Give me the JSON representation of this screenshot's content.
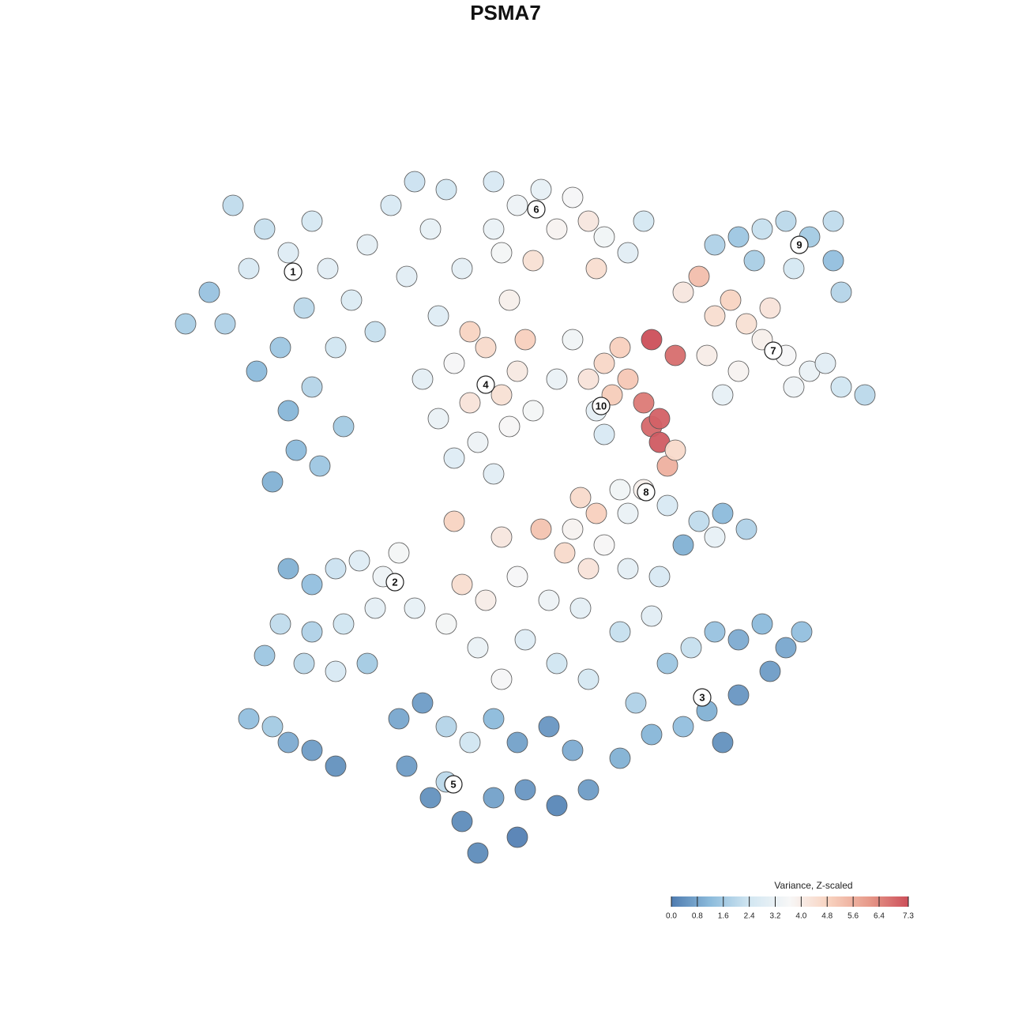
{
  "chart_data": {
    "type": "scatter",
    "title": "PSMA7",
    "x": [
      -40,
      -38,
      -35,
      -33,
      -30,
      -27,
      -25,
      -28,
      -31,
      -34,
      -30,
      -27,
      -24,
      -22,
      -20,
      -17,
      -14,
      -12,
      -15,
      -19,
      -23,
      -29,
      -32,
      -26,
      -43,
      -37,
      -10,
      -8,
      -11,
      -4,
      -1,
      2,
      4,
      6,
      8,
      10,
      13,
      15,
      -3,
      1,
      -2,
      -4,
      9,
      -13,
      -11,
      -9,
      -7,
      -5,
      -3,
      -1,
      -2,
      -6,
      -9,
      -4,
      1,
      -7,
      0,
      8,
      10,
      12,
      13,
      11,
      9,
      10,
      15,
      16,
      17,
      18,
      17,
      19,
      16,
      19,
      6,
      4,
      20,
      22,
      24,
      26,
      28,
      30,
      33,
      36,
      38,
      40,
      43,
      34,
      27,
      23,
      31,
      25,
      24,
      27,
      30,
      33,
      36,
      39,
      40,
      34,
      29,
      39,
      12,
      15,
      18,
      22,
      25,
      28,
      24,
      20,
      7,
      9,
      6,
      13,
      -9,
      -3,
      2,
      5,
      8,
      10,
      13,
      17,
      -8,
      -5,
      -1,
      3,
      7,
      -10,
      -6,
      0,
      4,
      -3,
      8,
      12,
      16,
      -30,
      -27,
      -24,
      -21,
      -18,
      -19,
      -23,
      -27,
      -31,
      -33,
      -28,
      -24,
      -20,
      -14,
      -16,
      18,
      21,
      24,
      27,
      30,
      33,
      35,
      31,
      27,
      23,
      20,
      16,
      14,
      25,
      12,
      -16,
      -13,
      -10,
      -7,
      -4,
      -1,
      3,
      6,
      -15,
      -12,
      -8,
      -4,
      0,
      4,
      8,
      -1,
      -6,
      -10,
      -35,
      -32,
      -30,
      -27,
      -24
    ],
    "y": [
      27,
      23,
      30,
      35,
      32,
      36,
      30,
      25,
      20,
      17,
      12,
      15,
      20,
      26,
      33,
      38,
      41,
      35,
      29,
      22,
      10,
      7,
      3,
      5,
      23,
      38,
      40,
      30,
      24,
      41,
      38,
      40,
      35,
      39,
      36,
      34,
      32,
      36,
      32,
      31,
      26,
      35,
      30,
      16,
      11,
      18,
      13,
      20,
      14,
      17,
      10,
      8,
      6,
      4,
      12,
      22,
      21,
      16,
      18,
      20,
      16,
      14,
      12,
      9,
      13,
      10,
      8,
      5,
      11,
      7,
      21,
      19,
      21,
      16,
      27,
      29,
      24,
      26,
      23,
      21,
      19,
      17,
      18,
      15,
      14,
      15,
      17,
      19,
      25,
      14,
      33,
      34,
      35,
      36,
      34,
      31,
      27,
      30,
      31,
      36,
      2,
      2,
      0,
      -2,
      -1,
      -3,
      -4,
      -5,
      1,
      -1,
      -3,
      -1,
      -2,
      -4,
      -3,
      -6,
      -8,
      -5,
      -8,
      -9,
      -10,
      -12,
      -9,
      -12,
      -13,
      -15,
      -18,
      -17,
      -20,
      -22,
      -22,
      -16,
      -14,
      -8,
      -10,
      -8,
      -7,
      -9,
      -13,
      -15,
      -16,
      -15,
      -19,
      -20,
      -21,
      -20,
      -13,
      -6,
      -20,
      -18,
      -16,
      -17,
      -15,
      -18,
      -16,
      -21,
      -24,
      -26,
      -28,
      -29,
      -25,
      -30,
      -32,
      -27,
      -25,
      -28,
      -30,
      -27,
      -30,
      -28,
      -31,
      -33,
      -37,
      -40,
      -37,
      -36,
      -38,
      -36,
      -42,
      -44,
      -35,
      -27,
      -28,
      -30,
      -31,
      -33
    ],
    "values": [
      1.4,
      1.8,
      2.6,
      2.2,
      2.8,
      2.5,
      2.9,
      2.0,
      1.5,
      1.2,
      1.1,
      1.9,
      2.4,
      2.7,
      3.0,
      2.6,
      2.3,
      3.1,
      2.9,
      2.2,
      1.6,
      1.2,
      1.0,
      1.5,
      1.7,
      2.1,
      2.4,
      3.0,
      2.8,
      2.6,
      3.3,
      3.1,
      3.8,
      3.6,
      4.2,
      3.4,
      2.9,
      2.5,
      3.5,
      4.4,
      3.9,
      3.2,
      4.5,
      3.0,
      3.2,
      3.6,
      4.3,
      4.6,
      4.4,
      4.1,
      3.7,
      3.3,
      2.8,
      2.9,
      3.5,
      4.8,
      4.9,
      4.3,
      4.7,
      4.9,
      5.1,
      5.0,
      3.0,
      2.6,
      6.6,
      6.9,
      7.1,
      5.6,
      7.0,
      4.6,
      7.3,
      6.8,
      3.4,
      3.2,
      4.2,
      5.3,
      4.5,
      4.8,
      4.4,
      3.9,
      3.6,
      3.2,
      2.9,
      2.4,
      2.0,
      3.3,
      3.8,
      4.0,
      4.3,
      3.1,
      1.8,
      1.5,
      2.2,
      2.0,
      1.6,
      1.3,
      1.9,
      2.5,
      1.7,
      2.1,
      3.4,
      3.9,
      2.6,
      2.1,
      1.2,
      1.8,
      3.1,
      1.0,
      4.6,
      4.9,
      3.8,
      3.2,
      4.8,
      4.2,
      5.2,
      4.6,
      4.3,
      3.7,
      3.0,
      2.6,
      4.5,
      4.0,
      3.6,
      3.3,
      3.0,
      3.5,
      3.2,
      2.8,
      2.4,
      3.6,
      2.5,
      2.2,
      2.9,
      1.0,
      1.3,
      2.3,
      2.8,
      3.3,
      3.0,
      2.4,
      1.8,
      2.1,
      1.5,
      2.0,
      2.6,
      1.6,
      3.1,
      3.5,
      1.5,
      2.2,
      1.4,
      0.9,
      1.2,
      0.8,
      1.3,
      0.6,
      0.5,
      1.0,
      1.3,
      1.1,
      1.8,
      0.4,
      1.0,
      0.8,
      0.6,
      1.9,
      2.4,
      1.2,
      0.7,
      0.5,
      0.9,
      0.6,
      0.4,
      0.3,
      0.7,
      0.5,
      0.2,
      0.6,
      0.1,
      0.3,
      2.0,
      1.3,
      1.6,
      0.9,
      0.6,
      0.4
    ],
    "xlim": [
      -47,
      47
    ],
    "ylim": [
      -46,
      46
    ],
    "clusters": [
      {
        "label": "1",
        "x": -29.4,
        "y": 29.6
      },
      {
        "label": "2",
        "x": -16.5,
        "y": -9.7
      },
      {
        "label": "3",
        "x": 22.4,
        "y": -24.3
      },
      {
        "label": "4",
        "x": -5,
        "y": 15.3
      },
      {
        "label": "5",
        "x": -9.1,
        "y": -35.3
      },
      {
        "label": "6",
        "x": 1.4,
        "y": 37.5
      },
      {
        "label": "7",
        "x": 31.4,
        "y": 19.6
      },
      {
        "label": "8",
        "x": 15.3,
        "y": 1.7
      },
      {
        "label": "9",
        "x": 34.7,
        "y": 33
      },
      {
        "label": "10",
        "x": 9.6,
        "y": 12.6
      }
    ],
    "colorbar": {
      "title": "Variance, Z-scaled",
      "range": [
        0,
        7.3
      ],
      "ticks": [
        {
          "value": 0,
          "label": "0.0"
        },
        0.8,
        1.6,
        2.4,
        3.2,
        {
          "value": 4,
          "label": "4.0"
        },
        4.8,
        5.6,
        6.4,
        7.3
      ],
      "colors": [
        "#4f7cb0",
        "#8dbcdc",
        "#d3e7f2",
        "#f7f7f7",
        "#f8d2bf",
        "#e79a8a",
        "#cc4f5a"
      ]
    }
  }
}
